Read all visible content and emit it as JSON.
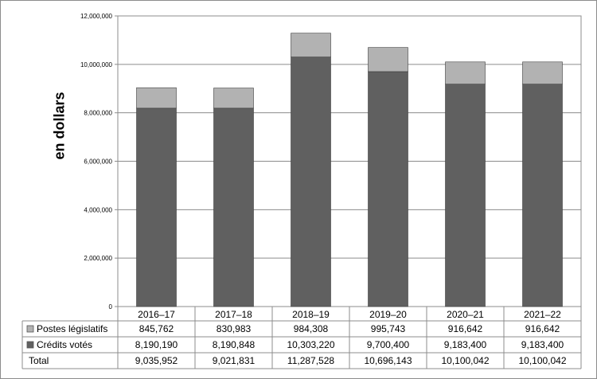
{
  "chart_data": {
    "type": "bar",
    "stacked": true,
    "title": "",
    "xlabel": "",
    "ylabel": "en dollars",
    "ylim": [
      0,
      12000000
    ],
    "ytick_labels": [
      "0",
      "2,000,000",
      "4,000,000",
      "6,000,000",
      "8,000,000",
      "10,000,000",
      "12,000,000"
    ],
    "categories": [
      "2016–17",
      "2017–18",
      "2018–19",
      "2019–20",
      "2020–21",
      "2021–22"
    ],
    "grid": "horizontal",
    "legend": "data table, left",
    "series": [
      {
        "name": "Postes législatifs",
        "color": "#b2b2b2",
        "values": [
          845762,
          830983,
          984308,
          995743,
          916642,
          916642
        ],
        "labels": [
          "845,762",
          "830,983",
          "984,308",
          "995,743",
          "916,642",
          "916,642"
        ]
      },
      {
        "name": "Crédits votés",
        "color": "#606060",
        "values": [
          8190190,
          8190848,
          10303220,
          9700400,
          9183400,
          9183400
        ],
        "labels": [
          "8,190,190",
          "8,190,848",
          "10,303,220",
          "9,700,400",
          "9,183,400",
          "9,183,400"
        ]
      }
    ],
    "total": {
      "name": "Total",
      "values": [
        9035952,
        9021831,
        11287528,
        10696143,
        10100042,
        10100042
      ],
      "labels": [
        "9,035,952",
        "9,021,831",
        "11,287,528",
        "10,696,143",
        "10,100,042",
        "10,100,042"
      ]
    }
  }
}
